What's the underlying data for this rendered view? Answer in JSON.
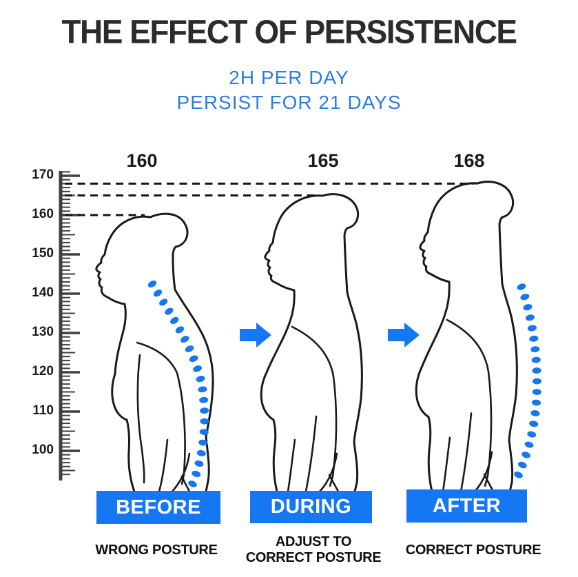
{
  "title": "THE EFFECT OF PERSISTENCE",
  "subtitle": {
    "line1": "2H PER DAY",
    "line2": "PERSIST FOR 21 DAYS"
  },
  "ruler": {
    "unit_labels": [
      "170",
      "160",
      "150",
      "140",
      "130",
      "120",
      "110",
      "100"
    ]
  },
  "figures": [
    {
      "height_label": "160",
      "stage_label": "BEFORE",
      "caption_line1": "WRONG POSTURE",
      "caption_line2": ""
    },
    {
      "height_label": "165",
      "stage_label": "DURING",
      "caption_line1": "ADJUST TO",
      "caption_line2": "CORRECT POSTURE"
    },
    {
      "height_label": "168",
      "stage_label": "AFTER",
      "caption_line1": "CORRECT POSTURE",
      "caption_line2": ""
    }
  ],
  "icons": {
    "arrow1": "right-arrow",
    "arrow2": "right-arrow"
  },
  "colors": {
    "accent_blue": "#1677F2",
    "subtitle_blue": "#2E7CDE",
    "title_dark": "#2B2B2B",
    "ink": "#1A1A1A"
  }
}
